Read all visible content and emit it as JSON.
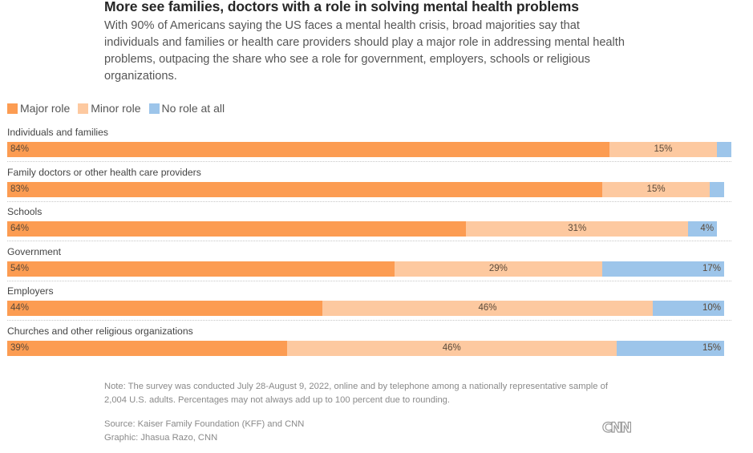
{
  "header": {
    "title": "More see families, doctors with a role in solving mental health problems",
    "subtitle": "With 90% of Americans saying the US faces a mental health crisis, broad majorities say that individuals and families or health care providers should play a major role in addressing mental health problems, outpacing the share who see a role for government, employers, schools or religious organizations."
  },
  "legend": [
    {
      "label": "Major role",
      "color": "#FC9C52"
    },
    {
      "label": "Minor role",
      "color": "#FDC9A0"
    },
    {
      "label": "No role at all",
      "color": "#9DC5EA"
    }
  ],
  "chart_data": {
    "type": "bar",
    "orientation": "horizontal",
    "stacked": true,
    "title": "More see families, doctors with a role in solving mental health problems",
    "categories": [
      "Individuals and families",
      "Family doctors or other health care providers",
      "Schools",
      "Government",
      "Employers",
      "Churches and other religious organizations"
    ],
    "series": [
      {
        "name": "Major role",
        "color": "#FC9C52",
        "values": [
          84,
          83,
          64,
          54,
          44,
          39
        ],
        "labels": [
          "84%",
          "83%",
          "64%",
          "54%",
          "44%",
          "39%"
        ]
      },
      {
        "name": "Minor role",
        "color": "#FDC9A0",
        "values": [
          15,
          15,
          31,
          29,
          46,
          46
        ],
        "labels": [
          "15%",
          "15%",
          "31%",
          "29%",
          "46%",
          "46%"
        ]
      },
      {
        "name": "No role at all",
        "color": "#9DC5EA",
        "values": [
          2,
          2,
          4,
          17,
          10,
          15
        ],
        "labels": [
          "",
          "",
          "4%",
          "17%",
          "10%",
          "15%"
        ]
      }
    ],
    "xlim": [
      0,
      100
    ],
    "unit": "%",
    "legend_position": "top-left",
    "grid": false
  },
  "footer": {
    "note": "Note: The survey was conducted July 28-August 9, 2022, online and by telephone among a nationally representative sample of 2,004 U.S. adults. Percentages may not always add up to 100 percent due to rounding.",
    "source": "Source: Kaiser Family Foundation (KFF) and CNN",
    "graphic": "Graphic: Jhasua Razo, CNN",
    "logo": "CNN"
  }
}
